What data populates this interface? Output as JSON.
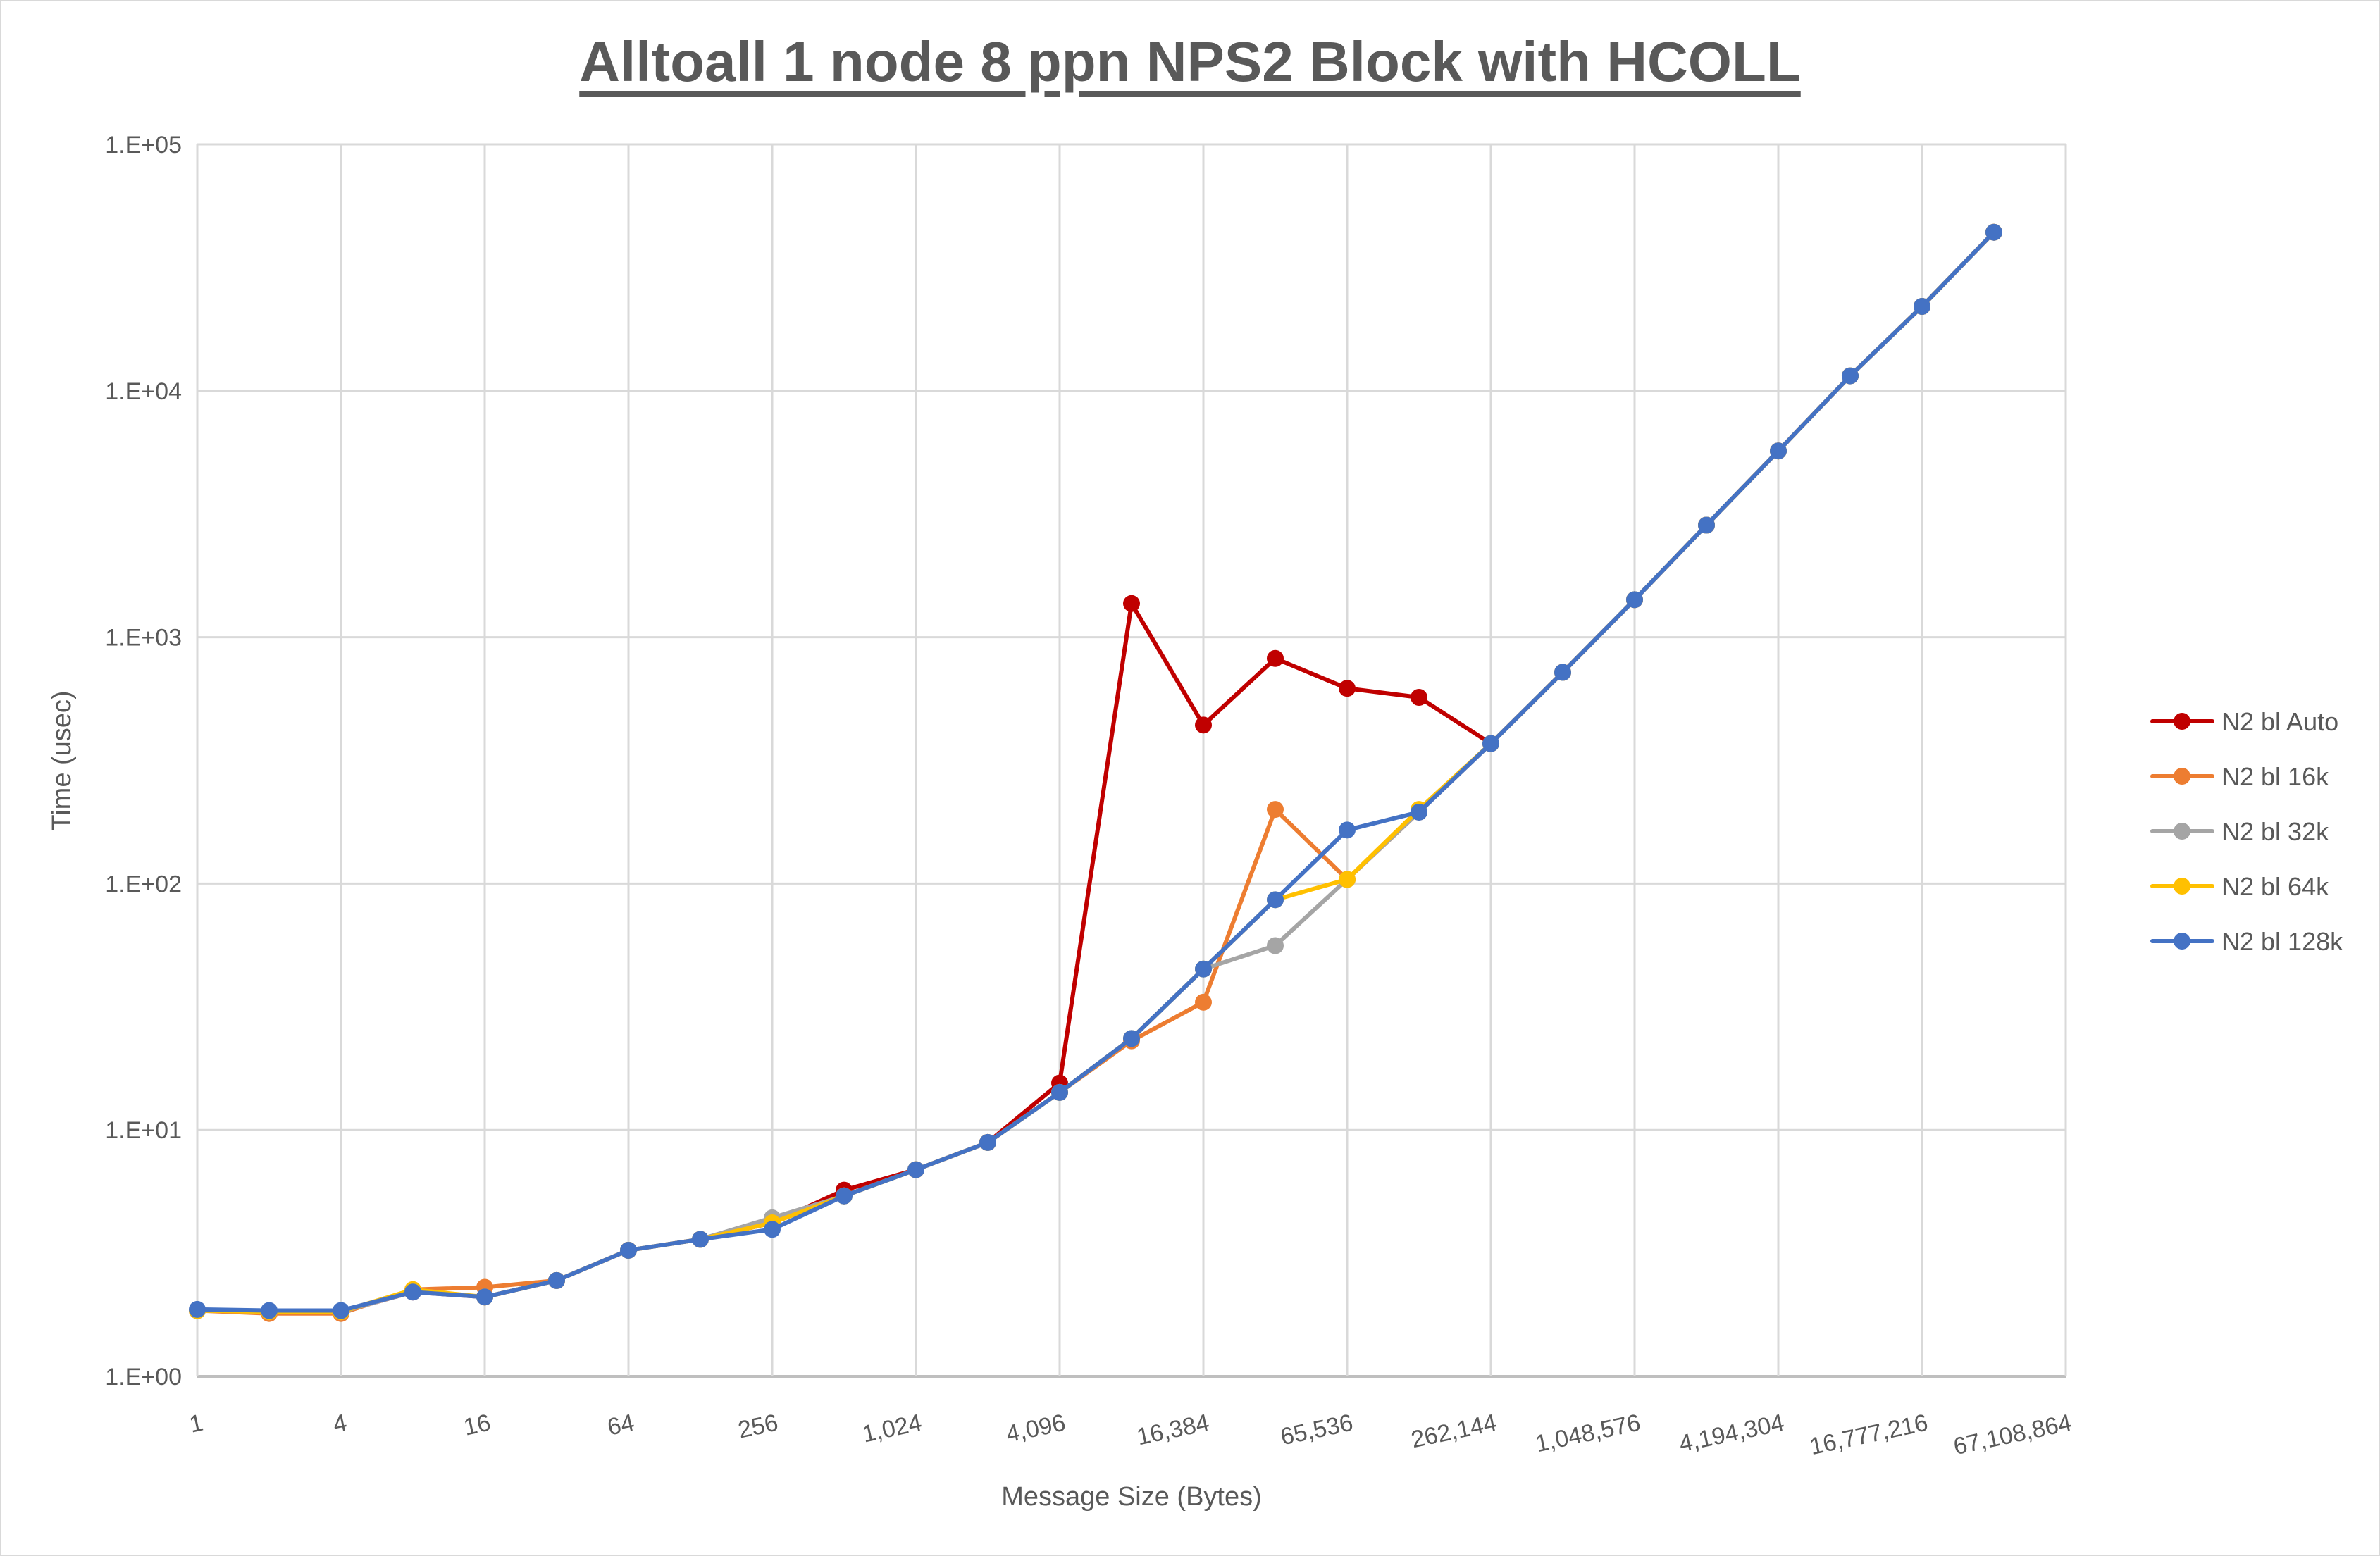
{
  "chart_data": {
    "type": "line",
    "title": "Alltoall 1 node 8 ppn NPS2 Block with HCOLL",
    "xlabel": "Message Size (Bytes)",
    "ylabel": "Time (usec)",
    "yscale": "log",
    "ylim": [
      1,
      100000
    ],
    "y_ticks": [
      "1.E+00",
      "1.E+01",
      "1.E+02",
      "1.E+03",
      "1.E+04",
      "1.E+05"
    ],
    "x_tick_labels": [
      "1",
      "4",
      "16",
      "64",
      "256",
      "1,024",
      "4,096",
      "16,384",
      "65,536",
      "262,144",
      "1,048,576",
      "4,194,304",
      "16,777,216",
      "67,108,864"
    ],
    "x": [
      1,
      2,
      4,
      8,
      16,
      32,
      64,
      128,
      256,
      512,
      1024,
      2048,
      4096,
      8192,
      16384,
      32768,
      65536,
      131072,
      262144,
      524288,
      1048576,
      2097152,
      4194304,
      8388608,
      16777216,
      33554432
    ],
    "grid": true,
    "legend_position": "right",
    "series": [
      {
        "name": "N2 bl Auto",
        "color": "#C00000",
        "values": [
          1.85,
          1.83,
          1.83,
          2.2,
          2.1,
          2.45,
          3.25,
          3.6,
          4.2,
          5.7,
          6.9,
          8.9,
          15.5,
          1370,
          440,
          820,
          620,
          570,
          370,
          720,
          1420,
          2850,
          5700,
          11500,
          22000,
          44000
        ]
      },
      {
        "name": "N2 bl 16k",
        "color": "#ED7D31",
        "values": [
          1.85,
          1.8,
          1.8,
          2.25,
          2.3,
          2.45,
          3.25,
          3.6,
          4.2,
          5.4,
          6.9,
          8.9,
          14.2,
          23,
          33,
          200,
          104,
          195,
          370,
          720,
          1420,
          2850,
          5700,
          11500,
          22000,
          44000
        ]
      },
      {
        "name": "N2 bl 32k",
        "color": "#A5A5A5",
        "values": [
          1.85,
          1.83,
          1.83,
          2.2,
          2.1,
          2.45,
          3.25,
          3.6,
          4.4,
          5.4,
          6.9,
          8.9,
          14.2,
          23.5,
          45,
          56,
          104,
          195,
          370,
          720,
          1420,
          2850,
          5700,
          11500,
          22000,
          44000
        ]
      },
      {
        "name": "N2 bl 64k",
        "color": "#FFC000",
        "values": [
          1.85,
          1.83,
          1.83,
          2.25,
          2.1,
          2.45,
          3.25,
          3.6,
          4.2,
          5.4,
          6.9,
          8.9,
          14.2,
          23.5,
          45,
          86,
          104,
          200,
          370,
          720,
          1420,
          2850,
          5700,
          11500,
          22000,
          44000
        ]
      },
      {
        "name": "N2 bl 128k",
        "color": "#4472C4",
        "values": [
          1.87,
          1.85,
          1.85,
          2.2,
          2.1,
          2.45,
          3.25,
          3.6,
          3.95,
          5.4,
          6.9,
          8.9,
          14.2,
          23.5,
          45,
          86,
          165,
          195,
          370,
          720,
          1420,
          2850,
          5700,
          11500,
          22000,
          44000
        ]
      }
    ]
  },
  "chart": {
    "title": "Alltoall 1 node 8 ppn NPS2 Block with HCOLL",
    "xlabel": "Message Size (Bytes)",
    "ylabel": "Time (usec)"
  }
}
